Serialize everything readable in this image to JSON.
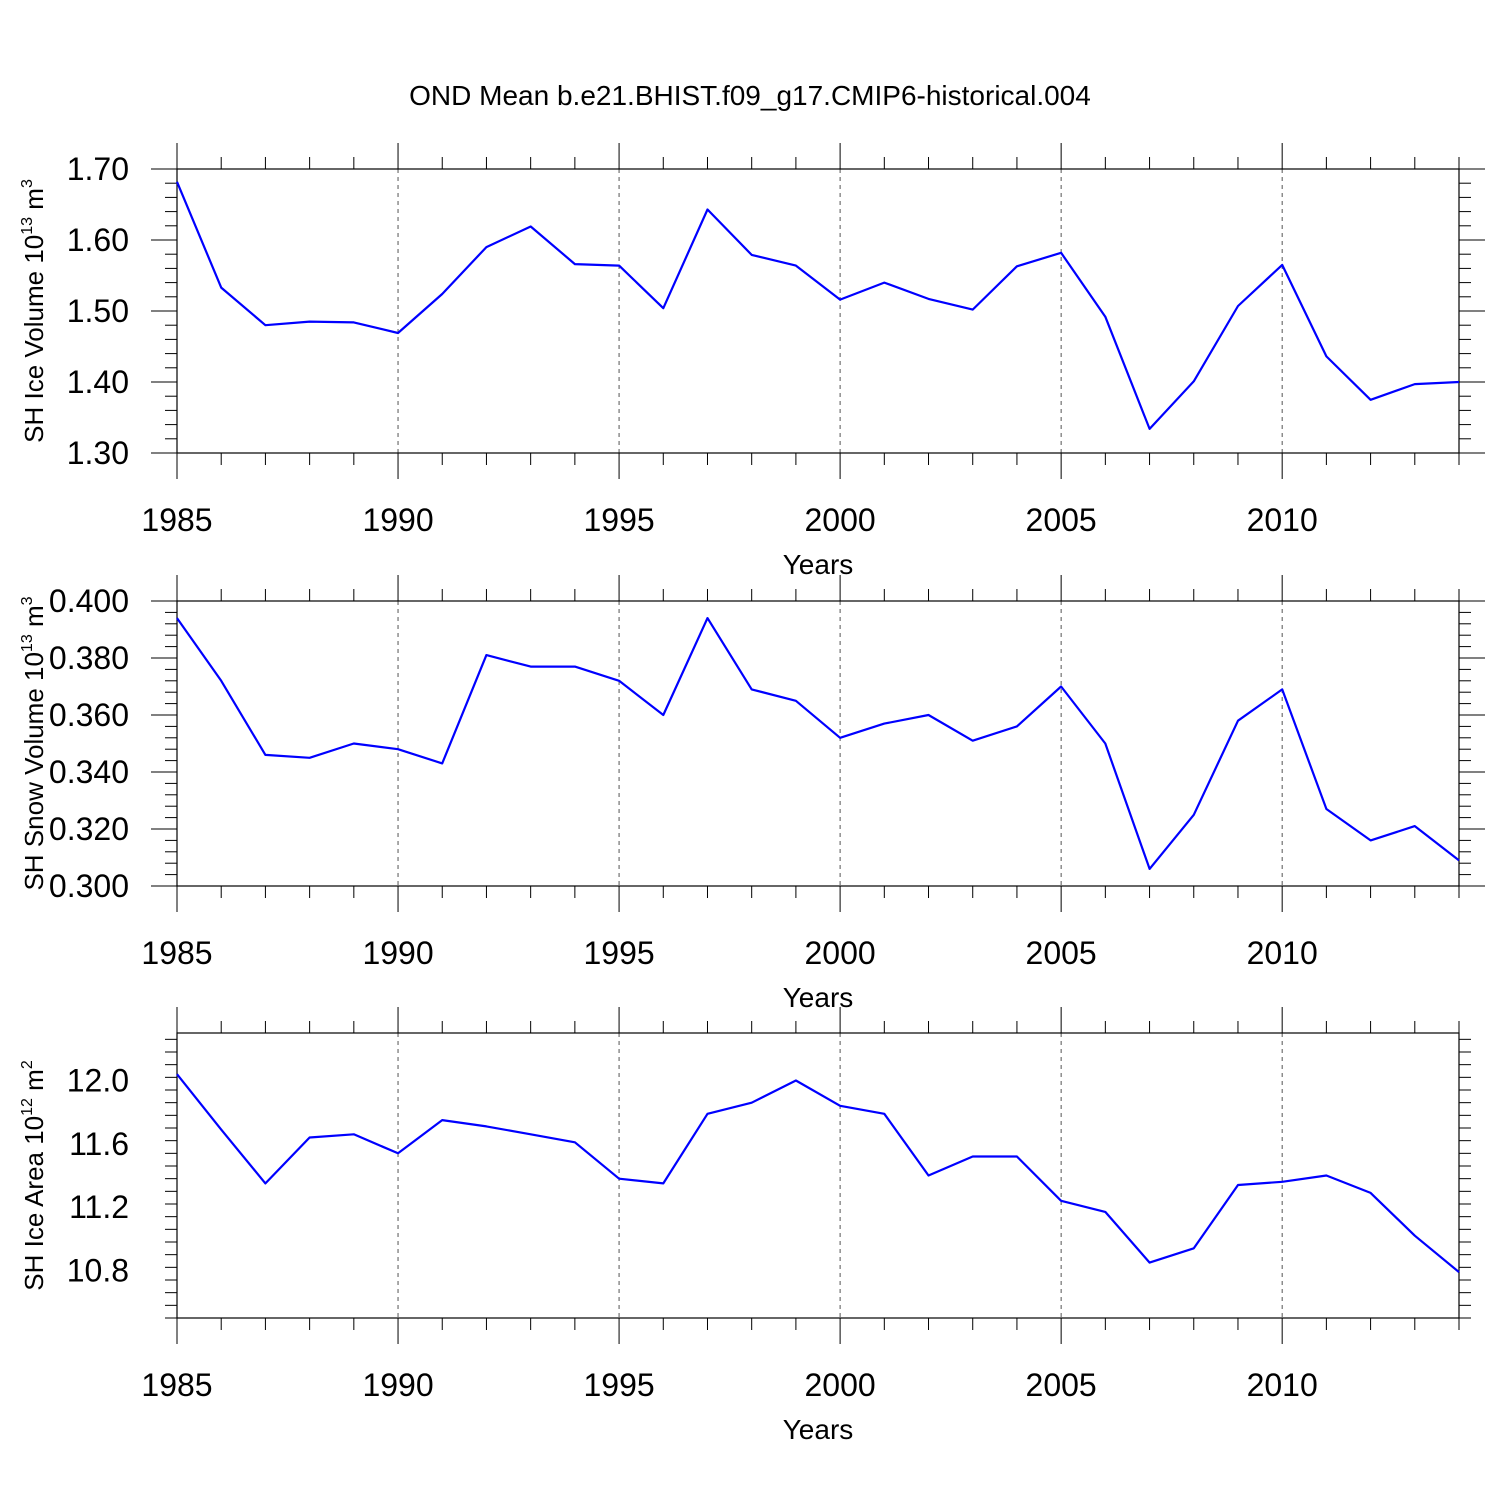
{
  "title": "OND Mean b.e21.BHIST.f09_g17.CMIP6-historical.004",
  "chart_data": [
    {
      "type": "line",
      "name": "ice-volume",
      "ylabel": "SH Ice Volume 10",
      "ylabel_sup": "13",
      "ylabel_unit": " m",
      "ylabel_unit_sup": "3",
      "xlabel": "Years",
      "xlim": [
        1985,
        2014
      ],
      "ylim": [
        1.3,
        1.7
      ],
      "xticks": [
        1985,
        1990,
        1995,
        2000,
        2005,
        2010
      ],
      "xtick_labels": [
        "1985",
        "1990",
        "1995",
        "2000",
        "2005",
        "2010"
      ],
      "yticks": [
        1.3,
        1.4,
        1.5,
        1.6,
        1.7
      ],
      "ytick_labels": [
        "1.30",
        "1.40",
        "1.50",
        "1.60",
        "1.70"
      ],
      "color": "#0000ff",
      "x": [
        1985,
        1986,
        1987,
        1988,
        1989,
        1990,
        1991,
        1992,
        1993,
        1994,
        1995,
        1996,
        1997,
        1998,
        1999,
        2000,
        2001,
        2002,
        2003,
        2004,
        2005,
        2006,
        2007,
        2008,
        2009,
        2010,
        2011,
        2012,
        2013,
        2014
      ],
      "values": [
        1.682,
        1.533,
        1.48,
        1.485,
        1.484,
        1.469,
        1.524,
        1.59,
        1.619,
        1.566,
        1.564,
        1.504,
        1.643,
        1.579,
        1.564,
        1.516,
        1.54,
        1.517,
        1.502,
        1.563,
        1.582,
        1.492,
        1.334,
        1.401,
        1.507,
        1.565,
        1.436,
        1.375,
        1.397,
        1.4
      ]
    },
    {
      "type": "line",
      "name": "snow-volume",
      "ylabel": "SH Snow Volume 10",
      "ylabel_sup": "13",
      "ylabel_unit": " m",
      "ylabel_unit_sup": "3",
      "xlabel": "Years",
      "xlim": [
        1985,
        2014
      ],
      "ylim": [
        0.3,
        0.4
      ],
      "xticks": [
        1985,
        1990,
        1995,
        2000,
        2005,
        2010
      ],
      "xtick_labels": [
        "1985",
        "1990",
        "1995",
        "2000",
        "2005",
        "2010"
      ],
      "yticks": [
        0.3,
        0.32,
        0.34,
        0.36,
        0.38,
        0.4
      ],
      "ytick_labels": [
        "0.300",
        "0.320",
        "0.340",
        "0.360",
        "0.380",
        "0.400"
      ],
      "color": "#0000ff",
      "x": [
        1985,
        1986,
        1987,
        1988,
        1989,
        1990,
        1991,
        1992,
        1993,
        1994,
        1995,
        1996,
        1997,
        1998,
        1999,
        2000,
        2001,
        2002,
        2003,
        2004,
        2005,
        2006,
        2007,
        2008,
        2009,
        2010,
        2011,
        2012,
        2013,
        2014
      ],
      "values": [
        0.394,
        0.372,
        0.346,
        0.345,
        0.35,
        0.348,
        0.343,
        0.381,
        0.377,
        0.377,
        0.372,
        0.36,
        0.394,
        0.369,
        0.365,
        0.352,
        0.357,
        0.36,
        0.351,
        0.356,
        0.37,
        0.35,
        0.306,
        0.325,
        0.358,
        0.369,
        0.327,
        0.316,
        0.321,
        0.309
      ]
    },
    {
      "type": "line",
      "name": "ice-area",
      "ylabel": "SH Ice Area 10",
      "ylabel_sup": "12",
      "ylabel_unit": " m",
      "ylabel_unit_sup": "2",
      "xlabel": "Years",
      "xlim": [
        1985,
        2014
      ],
      "ylim": [
        10.5,
        12.3
      ],
      "xticks": [
        1985,
        1990,
        1995,
        2000,
        2005,
        2010
      ],
      "xtick_labels": [
        "1985",
        "1990",
        "1995",
        "2000",
        "2005",
        "2010"
      ],
      "yticks": [
        10.8,
        11.2,
        11.6,
        12.0
      ],
      "ytick_labels": [
        "10.8",
        "11.2",
        "11.6",
        "12.0"
      ],
      "color": "#0000ff",
      "x": [
        1985,
        1986,
        1987,
        1988,
        1989,
        1990,
        1991,
        1992,
        1993,
        1994,
        1995,
        1996,
        1997,
        1998,
        1999,
        2000,
        2001,
        2002,
        2003,
        2004,
        2005,
        2006,
        2007,
        2008,
        2009,
        2010,
        2011,
        2012,
        2013,
        2014
      ],
      "values": [
        12.04,
        11.69,
        11.35,
        11.64,
        11.66,
        11.54,
        11.75,
        11.71,
        11.66,
        11.61,
        11.38,
        11.35,
        11.79,
        11.86,
        12.0,
        11.84,
        11.79,
        11.4,
        11.52,
        11.52,
        11.24,
        11.17,
        10.85,
        10.94,
        11.34,
        11.36,
        11.4,
        11.29,
        11.02,
        10.79
      ]
    }
  ]
}
